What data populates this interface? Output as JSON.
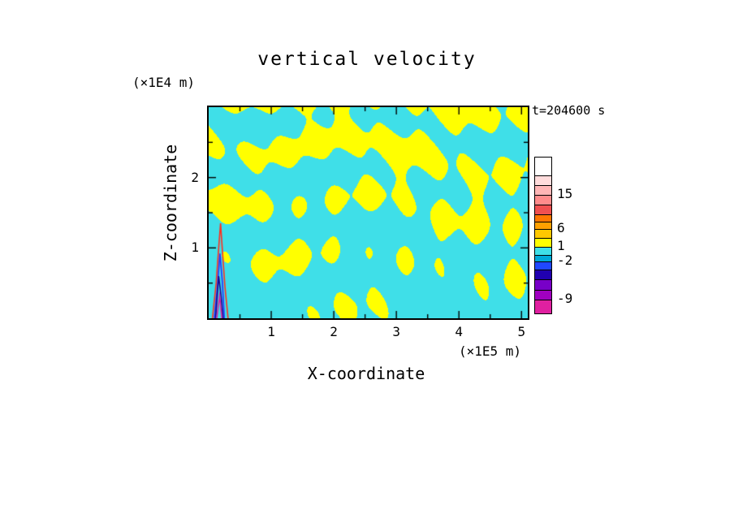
{
  "chart_data": {
    "type": "filled_contour",
    "title": "vertical velocity",
    "time_label": "t=204600 s",
    "x_axis": {
      "label": "X-coordinate",
      "units": "(×1E5 m)",
      "range": [
        0,
        5.1
      ],
      "major_ticks": [
        1,
        2,
        3,
        4,
        5
      ],
      "minor_tick_step": 0.5
    },
    "z_axis": {
      "label": "Z-coordinate",
      "units": "(×1E4 m)",
      "range": [
        0,
        3
      ],
      "major_ticks": [
        1,
        2
      ],
      "minor_tick_step": 0.5
    },
    "field_colors": {
      "positive_fill": "#ffff00",
      "negative_fill": "#3fdfe8"
    },
    "colorbar": {
      "segments": [
        {
          "color": "#ffffff",
          "height": 22
        },
        {
          "color": "#ffdcdc",
          "height": 12
        },
        {
          "color": "#ffb6b6",
          "height": 12
        },
        {
          "color": "#ff8c8c",
          "height": 12
        },
        {
          "color": "#f05050",
          "height": 12
        },
        {
          "color": "#ff7800",
          "height": 9
        },
        {
          "color": "#ffa000",
          "height": 9
        },
        {
          "color": "#ffc800",
          "height": 11
        },
        {
          "color": "#ffff00",
          "height": 11
        },
        {
          "color": "#3fdfe8",
          "height": 10
        },
        {
          "color": "#00a8d8",
          "height": 8
        },
        {
          "color": "#2048ff",
          "height": 10
        },
        {
          "color": "#2000b0",
          "height": 12
        },
        {
          "color": "#7800c8",
          "height": 13
        },
        {
          "color": "#a000c0",
          "height": 12
        },
        {
          "color": "#e020a0",
          "height": 17
        }
      ],
      "labels": [
        {
          "text": "15",
          "offset": 46
        },
        {
          "text": "6",
          "offset": 88
        },
        {
          "text": "1",
          "offset": 110
        },
        {
          "text": "-2",
          "offset": 128
        },
        {
          "text": "-9",
          "offset": 175
        }
      ]
    },
    "source_feature": {
      "description": "narrow contour spike near lower-left of plot",
      "contours": [
        {
          "color": "#ff3020",
          "points": [
            [
              0.06,
              0
            ],
            [
              0.12,
              0.5
            ],
            [
              0.16,
              1.0
            ],
            [
              0.19,
              1.35
            ],
            [
              0.22,
              0.95
            ],
            [
              0.26,
              0.45
            ],
            [
              0.31,
              0
            ]
          ]
        },
        {
          "color": "#2830ff",
          "points": [
            [
              0.09,
              0
            ],
            [
              0.14,
              0.45
            ],
            [
              0.18,
              0.92
            ],
            [
              0.22,
              0.5
            ],
            [
              0.25,
              0
            ]
          ]
        },
        {
          "color": "#1a0090",
          "points": [
            [
              0.11,
              0
            ],
            [
              0.16,
              0.6
            ],
            [
              0.2,
              0.3
            ],
            [
              0.23,
              0
            ]
          ]
        },
        {
          "color": "#e020a0",
          "points": [
            [
              0.13,
              0
            ],
            [
              0.175,
              0.32
            ],
            [
              0.21,
              0
            ]
          ]
        }
      ]
    }
  }
}
